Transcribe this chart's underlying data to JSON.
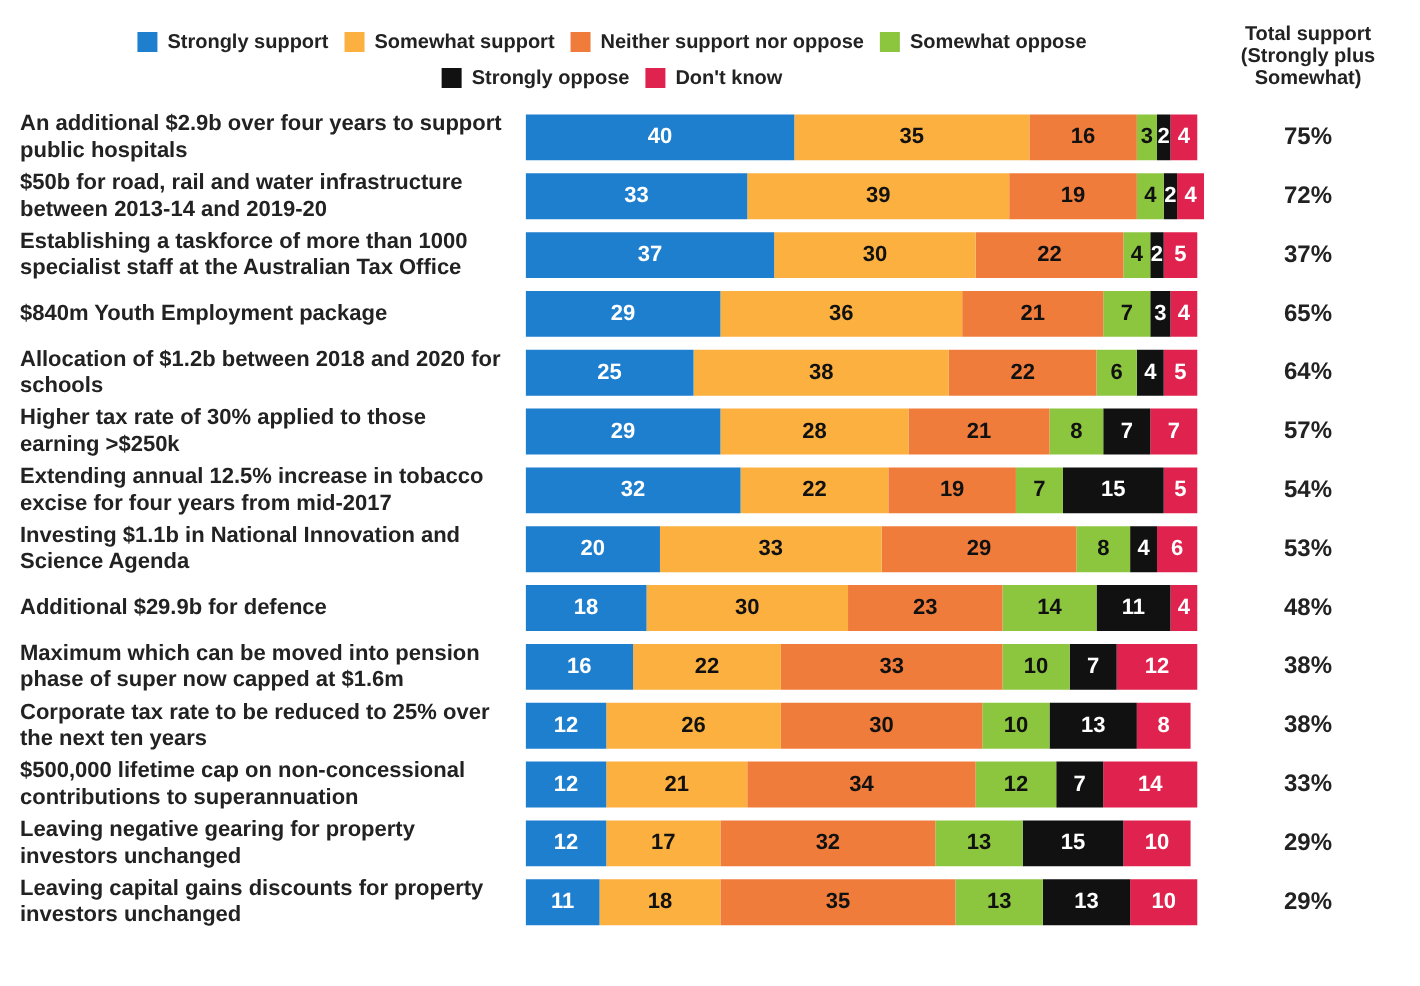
{
  "chart_data": {
    "type": "bar",
    "orientation": "horizontal",
    "stacked": true,
    "data_labels": true,
    "legend": "top",
    "tick_labels": "y",
    "grid": false,
    "categories": [
      "An additional $2.9b over four years to support public hospitals",
      "$50b for road, rail and water infrastructure between 2013-14 and 2019-20",
      "Establishing a taskforce of more than 1000 specialist staff at the Australian Tax Office",
      "$840m Youth Employment package",
      "Allocation of $1.2b between 2018 and 2020 for schools",
      "Higher tax rate of 30% applied to those earning >$250k",
      "Extending annual 12.5% increase in tobacco excise for four years from mid-2017",
      "Investing $1.1b in National Innovation and Science Agenda",
      "Additional $29.9b for defence",
      "Maximum which can be moved into pension phase of super now capped at $1.6m",
      "Corporate tax rate to be reduced to 25% over the next ten years",
      "$500,000 lifetime cap on non-concessional contributions to superannuation",
      "Leaving negative gearing for property investors unchanged",
      "Leaving capital gains discounts for property investors unchanged"
    ],
    "series": [
      {
        "name": "Strongly support",
        "color": "#1f7fcf",
        "values": [
          40,
          33,
          37,
          29,
          25,
          29,
          32,
          20,
          18,
          16,
          12,
          12,
          12,
          11
        ]
      },
      {
        "name": "Somewhat support",
        "color": "#fbb040",
        "values": [
          35,
          39,
          30,
          36,
          38,
          28,
          22,
          33,
          30,
          22,
          26,
          21,
          17,
          18
        ]
      },
      {
        "name": "Neither support nor oppose",
        "color": "#f07c3c",
        "values": [
          16,
          19,
          22,
          21,
          22,
          21,
          19,
          29,
          23,
          33,
          30,
          34,
          32,
          35
        ]
      },
      {
        "name": "Somewhat oppose",
        "color": "#8cc63f",
        "values": [
          3,
          4,
          4,
          7,
          6,
          8,
          7,
          8,
          14,
          10,
          10,
          12,
          13,
          13
        ]
      },
      {
        "name": "Strongly oppose",
        "color": "#111111",
        "values": [
          2,
          2,
          2,
          3,
          4,
          7,
          15,
          4,
          11,
          7,
          13,
          7,
          15,
          13
        ]
      },
      {
        "name": "Don't know",
        "color": "#e0234e",
        "values": [
          4,
          4,
          5,
          4,
          5,
          7,
          5,
          6,
          4,
          12,
          8,
          14,
          10,
          10
        ]
      }
    ],
    "annotations": [
      "Total support (Strongly plus Somewhat)",
      "75%",
      "72%",
      "37%",
      "65%",
      "64%",
      "57%",
      "54%",
      "53%",
      "48%",
      "38%",
      "38%",
      "33%",
      "29%",
      "29%"
    ]
  }
}
